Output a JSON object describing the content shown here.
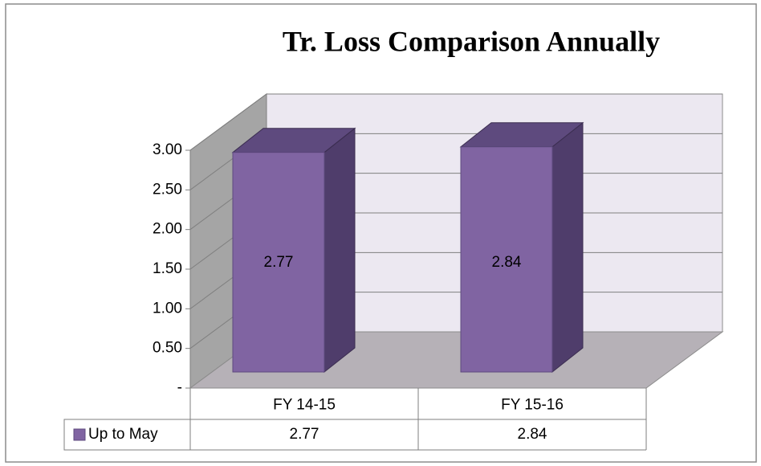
{
  "chart_data": {
    "type": "bar3d",
    "title": "Tr. Loss Comparison Annually",
    "categories": [
      "FY 14-15",
      "FY 15-16"
    ],
    "series": [
      {
        "name": "Up to May",
        "color": "#8064a2",
        "values": [
          2.77,
          2.84
        ]
      }
    ],
    "ylim": [
      0,
      3
    ],
    "yticks": [
      {
        "value": 0,
        "label": "-"
      },
      {
        "value": 0.5,
        "label": "0.50"
      },
      {
        "value": 1,
        "label": "1.00"
      },
      {
        "value": 1.5,
        "label": "1.50"
      },
      {
        "value": 2,
        "label": "2.00"
      },
      {
        "value": 2.5,
        "label": "2.50"
      },
      {
        "value": 3,
        "label": "3.00"
      }
    ],
    "grid": true,
    "data_table": true
  }
}
